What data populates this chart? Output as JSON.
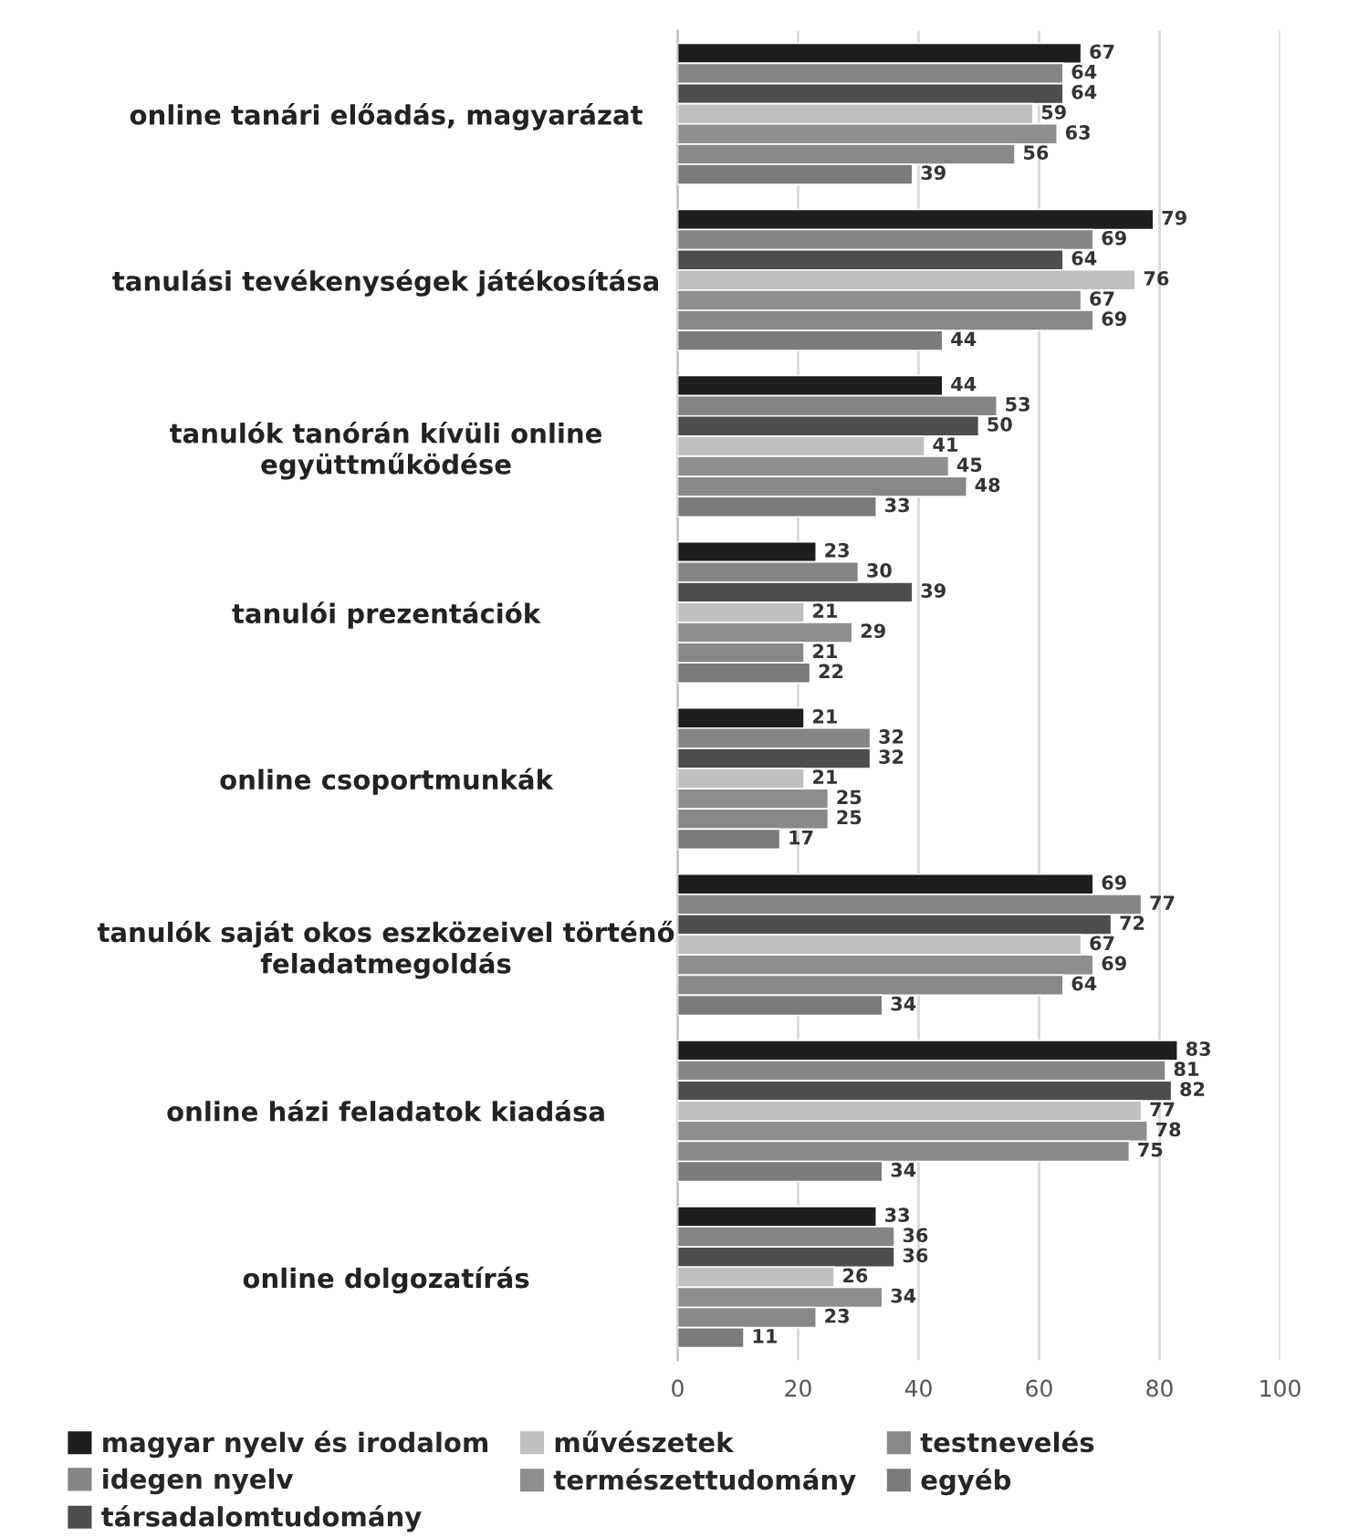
{
  "chart_data": {
    "type": "bar",
    "orientation": "horizontal",
    "categories": [
      "online tanári előadás, magyarázat",
      "tanulási tevékenységek játékosítása",
      "tanulók tanórán kívüli online\negyüttműködése",
      "tanulói prezentációk",
      "online csoportmunkák",
      "tanulók saját okos eszközeivel történő\nfeladatmegoldás",
      "online házi feladatok kiadása",
      "online dolgozatírás"
    ],
    "series": [
      {
        "name": "magyar nyelv és irodalom",
        "color": "#1e1e1e",
        "values": [
          67,
          79,
          44,
          23,
          21,
          69,
          83,
          33
        ]
      },
      {
        "name": "idegen nyelv",
        "color": "#858585",
        "values": [
          64,
          69,
          53,
          30,
          32,
          77,
          81,
          36
        ]
      },
      {
        "name": "társadalomtudomány",
        "color": "#4d4d4d",
        "values": [
          64,
          64,
          50,
          39,
          32,
          72,
          82,
          36
        ]
      },
      {
        "name": "művészetek",
        "color": "#bfbfbf",
        "values": [
          59,
          76,
          41,
          21,
          21,
          67,
          77,
          26
        ]
      },
      {
        "name": "természettudomány",
        "color": "#8e8e8e",
        "values": [
          63,
          67,
          45,
          29,
          25,
          69,
          78,
          34
        ]
      },
      {
        "name": "testnevelés",
        "color": "#888888",
        "values": [
          56,
          69,
          48,
          21,
          25,
          64,
          75,
          23
        ]
      },
      {
        "name": "egyéb",
        "color": "#7b7b7b",
        "values": [
          39,
          44,
          33,
          22,
          17,
          34,
          34,
          11
        ]
      }
    ],
    "xlim": [
      0,
      100
    ],
    "xticks": [
      0,
      20,
      40,
      60,
      80,
      100
    ],
    "grid": "x",
    "legend": "bottom",
    "data_labels": true
  }
}
